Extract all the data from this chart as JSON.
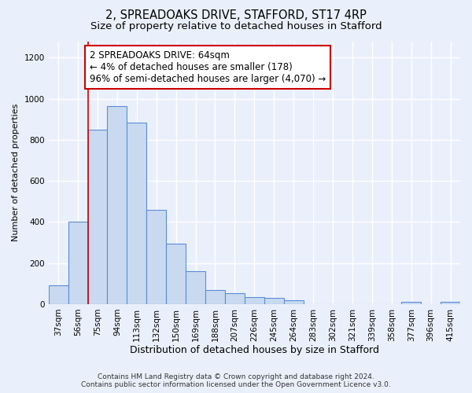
{
  "title1": "2, SPREADOAKS DRIVE, STAFFORD, ST17 4RP",
  "title2": "Size of property relative to detached houses in Stafford",
  "xlabel": "Distribution of detached houses by size in Stafford",
  "ylabel": "Number of detached properties",
  "footer1": "Contains HM Land Registry data © Crown copyright and database right 2024.",
  "footer2": "Contains public sector information licensed under the Open Government Licence v3.0.",
  "annotation_line1": "2 SPREADOAKS DRIVE: 64sqm",
  "annotation_line2": "← 4% of detached houses are smaller (178)",
  "annotation_line3": "96% of semi-detached houses are larger (4,070) →",
  "bar_color": "#c9d9ef",
  "bar_edge_color": "#5b8dd9",
  "redline_color": "#cc0000",
  "categories": [
    "37sqm",
    "56sqm",
    "75sqm",
    "94sqm",
    "113sqm",
    "132sqm",
    "150sqm",
    "169sqm",
    "188sqm",
    "207sqm",
    "226sqm",
    "245sqm",
    "264sqm",
    "283sqm",
    "302sqm",
    "321sqm",
    "339sqm",
    "358sqm",
    "377sqm",
    "396sqm",
    "415sqm"
  ],
  "bar_values": [
    90,
    400,
    848,
    965,
    885,
    460,
    295,
    160,
    70,
    52,
    35,
    30,
    18,
    0,
    0,
    0,
    0,
    0,
    10,
    0,
    10
  ],
  "ylim": [
    0,
    1280
  ],
  "yticks": [
    0,
    200,
    400,
    600,
    800,
    1000,
    1200
  ],
  "bg_color": "#eaf0fb",
  "plot_bg_color": "#eaf0fb",
  "grid_color": "#ffffff",
  "title1_fontsize": 10.5,
  "title2_fontsize": 9.5,
  "xlabel_fontsize": 9,
  "ylabel_fontsize": 8,
  "tick_fontsize": 7.5,
  "footer_fontsize": 6.5,
  "annotation_fontsize": 8.5
}
